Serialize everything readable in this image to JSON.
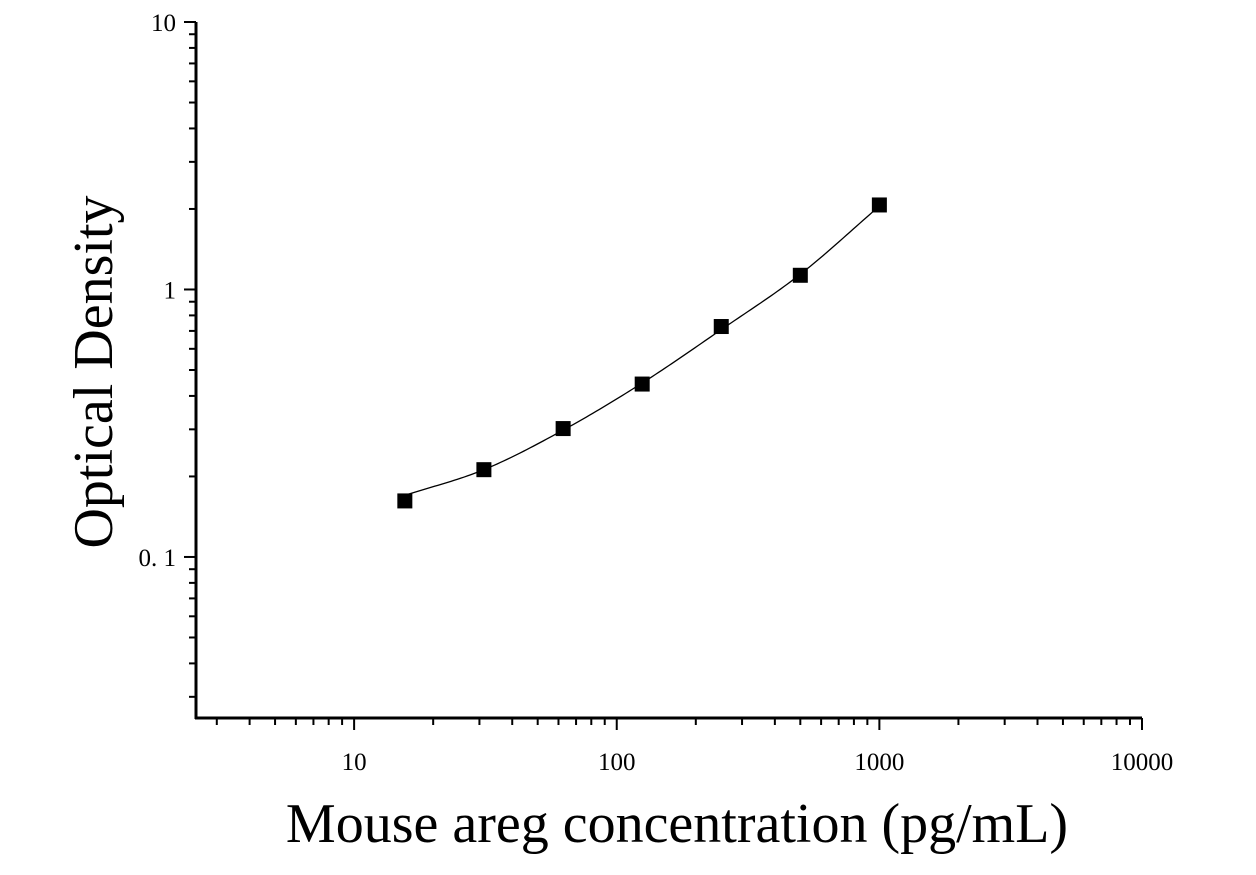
{
  "chart_data": {
    "type": "scatter",
    "title": "",
    "xlabel": "Mouse areg concentration (pg/mL)",
    "ylabel": "Optical Density",
    "x_scale": "log",
    "y_scale": "log",
    "xlim": [
      2.5,
      10000
    ],
    "ylim": [
      0.025,
      10
    ],
    "x_ticks": [
      {
        "value": 10,
        "label": "10"
      },
      {
        "value": 100,
        "label": "100"
      },
      {
        "value": 1000,
        "label": "1000"
      },
      {
        "value": 10000,
        "label": "10000"
      }
    ],
    "y_ticks": [
      {
        "value": 0.1,
        "label": "0. 1"
      },
      {
        "value": 1,
        "label": "1"
      },
      {
        "value": 10,
        "label": "10"
      }
    ],
    "grid": false,
    "legend": "none",
    "marker": "square",
    "marker_color": "#000000",
    "line_color": "#000000",
    "series": [
      {
        "x": [
          15.6,
          31.2,
          62.5,
          125,
          250,
          500,
          1000
        ],
        "y": [
          0.162,
          0.212,
          0.302,
          0.443,
          0.727,
          1.13,
          2.07
        ]
      }
    ],
    "fit_curve": {
      "type": "smooth",
      "x": [
        15.6,
        31.2,
        62.5,
        125,
        250,
        500,
        1000
      ],
      "y": [
        0.17,
        0.212,
        0.298,
        0.447,
        0.708,
        1.14,
        2.05
      ]
    }
  }
}
